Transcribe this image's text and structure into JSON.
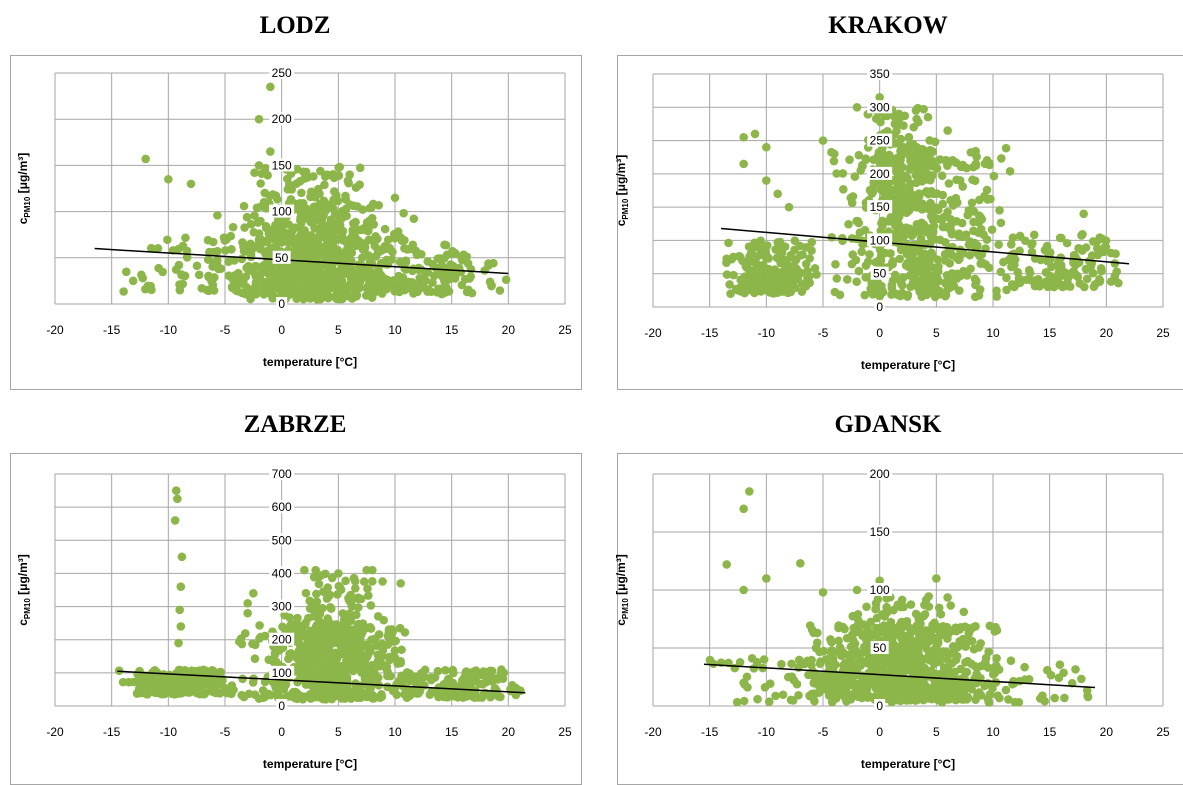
{
  "figure": {
    "point_color": "#8db64a",
    "trend_color": "#000000",
    "grid_color": "#a6a6a6"
  },
  "chart_data": [
    {
      "type": "scatter",
      "title": "LODZ",
      "xlabel": "temperature [°C]",
      "ylabel_main": "c",
      "ylabel_sub": "PM10",
      "ylabel_unit": " [μg/m³]",
      "xlim": [
        -20,
        25
      ],
      "ylim": [
        0,
        250
      ],
      "xticks": [
        -20,
        -15,
        -10,
        -5,
        0,
        5,
        10,
        15,
        20,
        25
      ],
      "yticks": [
        0,
        50,
        100,
        150,
        200,
        250
      ],
      "grid": true,
      "trendline": {
        "x": [
          -16.5,
          20
        ],
        "y": [
          60,
          33
        ]
      },
      "clusters": [
        {
          "x": [
            -16.5,
            19
          ],
          "y": [
            12,
            72
          ],
          "n": 260
        },
        {
          "x": [
            -6,
            12
          ],
          "y": [
            5,
            110
          ],
          "n": 450
        },
        {
          "x": [
            -3,
            9
          ],
          "y": [
            30,
            150
          ],
          "n": 180
        },
        {
          "x": [
            10,
            20
          ],
          "y": [
            10,
            60
          ],
          "n": 80
        }
      ],
      "points": [
        [
          -1,
          235
        ],
        [
          -2,
          200
        ],
        [
          -12,
          157
        ],
        [
          -2,
          150
        ],
        [
          -1,
          165
        ],
        [
          4,
          140
        ],
        [
          -8,
          130
        ],
        [
          -10,
          135
        ],
        [
          6,
          140
        ],
        [
          10,
          115
        ]
      ]
    },
    {
      "type": "scatter",
      "title": "KRAKOW",
      "xlabel": "temperature [°C]",
      "ylabel_main": "c",
      "ylabel_sub": "PM10",
      "ylabel_unit": " [μg/m³]",
      "xlim": [
        -20,
        25
      ],
      "ylim": [
        0,
        350
      ],
      "xticks": [
        -20,
        -15,
        -10,
        -5,
        0,
        5,
        10,
        15,
        20,
        25
      ],
      "yticks": [
        0,
        50,
        100,
        150,
        200,
        250,
        300,
        350
      ],
      "grid": true,
      "trendline": {
        "x": [
          -14,
          22
        ],
        "y": [
          118,
          65
        ]
      },
      "clusters": [
        {
          "x": [
            -14,
            -5
          ],
          "y": [
            20,
            100
          ],
          "n": 180
        },
        {
          "x": [
            -5,
            12
          ],
          "y": [
            15,
            240
          ],
          "n": 520
        },
        {
          "x": [
            -2,
            5
          ],
          "y": [
            150,
            300
          ],
          "n": 130
        },
        {
          "x": [
            10,
            22
          ],
          "y": [
            30,
            110
          ],
          "n": 140
        }
      ],
      "points": [
        [
          0,
          315
        ],
        [
          -2,
          300
        ],
        [
          -1,
          290
        ],
        [
          -12,
          255
        ],
        [
          -11,
          260
        ],
        [
          -10,
          240
        ],
        [
          -5,
          250
        ],
        [
          -4,
          230
        ],
        [
          6,
          265
        ],
        [
          3,
          270
        ],
        [
          -10,
          190
        ],
        [
          -9,
          170
        ],
        [
          -12,
          215
        ],
        [
          18,
          140
        ],
        [
          -8,
          150
        ]
      ]
    },
    {
      "type": "scatter",
      "title": "ZABRZE",
      "xlabel": "temperature [°C]",
      "ylabel_main": "c",
      "ylabel_sub": "PM10",
      "ylabel_unit": " [μg/m³]",
      "xlim": [
        -20,
        25
      ],
      "ylim": [
        0,
        700
      ],
      "xticks": [
        -20,
        -15,
        -10,
        -5,
        0,
        5,
        10,
        15,
        20,
        25
      ],
      "yticks": [
        0,
        100,
        200,
        300,
        400,
        500,
        600,
        700
      ],
      "grid": true,
      "trendline": {
        "x": [
          -14.5,
          21.5
        ],
        "y": [
          105,
          40
        ]
      },
      "clusters": [
        {
          "x": [
            -14.5,
            -4
          ],
          "y": [
            35,
            110
          ],
          "n": 200
        },
        {
          "x": [
            -4,
            12
          ],
          "y": [
            20,
            250
          ],
          "n": 550
        },
        {
          "x": [
            0,
            10
          ],
          "y": [
            150,
            400
          ],
          "n": 120
        },
        {
          "x": [
            10,
            21.5
          ],
          "y": [
            25,
            110
          ],
          "n": 160
        }
      ],
      "points": [
        [
          -9.3,
          650
        ],
        [
          -9.2,
          625
        ],
        [
          -9.4,
          560
        ],
        [
          -8.8,
          450
        ],
        [
          -8.9,
          360
        ],
        [
          -9,
          290
        ],
        [
          -8.9,
          240
        ],
        [
          -9.1,
          190
        ],
        [
          2,
          410
        ],
        [
          3,
          410
        ],
        [
          5,
          400
        ],
        [
          7.5,
          410
        ],
        [
          8,
          410
        ],
        [
          10.5,
          370
        ],
        [
          -3,
          310
        ],
        [
          -2.5,
          340
        ],
        [
          -3,
          280
        ]
      ]
    },
    {
      "type": "scatter",
      "title": "GDANSK",
      "xlabel": "temperature [°C]",
      "ylabel_main": "c",
      "ylabel_sub": "PM10",
      "ylabel_unit": " [μg/m³]",
      "xlim": [
        -20,
        25
      ],
      "ylim": [
        0,
        200
      ],
      "xticks": [
        -20,
        -15,
        -10,
        -5,
        0,
        5,
        10,
        15,
        20,
        25
      ],
      "yticks": [
        0,
        50,
        100,
        150,
        200
      ],
      "grid": true,
      "trendline": {
        "x": [
          -15.5,
          19
        ],
        "y": [
          36,
          16
        ]
      },
      "clusters": [
        {
          "x": [
            -15.5,
            19
          ],
          "y": [
            3,
            42
          ],
          "n": 280
        },
        {
          "x": [
            -8,
            12
          ],
          "y": [
            5,
            70
          ],
          "n": 450
        },
        {
          "x": [
            -4,
            8
          ],
          "y": [
            40,
            95
          ],
          "n": 140
        }
      ],
      "points": [
        [
          -11.5,
          185
        ],
        [
          -12,
          170
        ],
        [
          -13.5,
          122
        ],
        [
          -7,
          123
        ],
        [
          -12,
          100
        ],
        [
          -10,
          110
        ],
        [
          0,
          108
        ],
        [
          5,
          110
        ],
        [
          -5,
          98
        ],
        [
          -2,
          100
        ]
      ]
    }
  ]
}
